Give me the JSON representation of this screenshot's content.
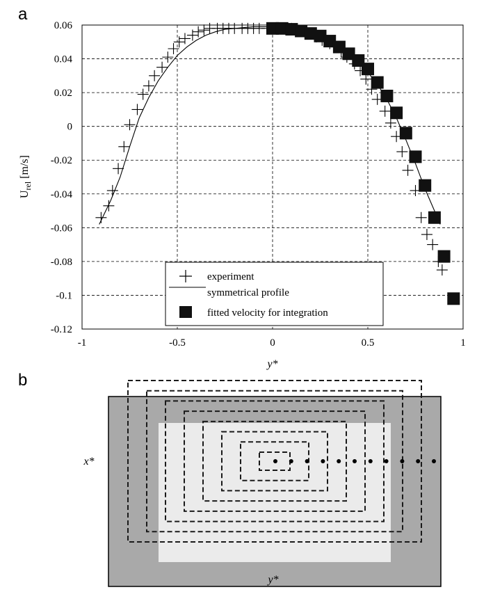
{
  "panels": {
    "a": "a",
    "b": "b"
  },
  "chart_data": [
    {
      "type": "scatter",
      "title": "",
      "xlabel": "y*",
      "ylabel_main": "U",
      "ylabel_sub": "rel",
      "ylabel_unit": " [m/s]",
      "xlim": [
        -1,
        1
      ],
      "ylim": [
        -0.12,
        0.06
      ],
      "xticks": [
        -1,
        -0.5,
        0,
        0.5,
        1
      ],
      "xtick_labels": [
        "-1",
        "-0.5",
        "0",
        "0.5",
        "1"
      ],
      "yticks": [
        0.06,
        0.04,
        0.02,
        0,
        -0.02,
        -0.04,
        -0.06,
        -0.08,
        -0.1,
        -0.12
      ],
      "ytick_labels": [
        "0.06",
        "0.04",
        "0.02",
        "0",
        "-0.02",
        "-0.04",
        "-0.06",
        "-0.08",
        "-0.1",
        "-0.12"
      ],
      "grid": true,
      "legend_position": "bottom-center",
      "series": [
        {
          "name": "experiment",
          "marker": "plus",
          "x": [
            -0.9,
            -0.86,
            -0.84,
            -0.81,
            -0.78,
            -0.75,
            -0.71,
            -0.68,
            -0.65,
            -0.62,
            -0.58,
            -0.55,
            -0.52,
            -0.49,
            -0.46,
            -0.42,
            -0.39,
            -0.36,
            -0.33,
            -0.29,
            -0.26,
            -0.23,
            -0.2,
            -0.16,
            -0.13,
            -0.1,
            -0.07,
            -0.03,
            0.0,
            0.04,
            0.07,
            0.1,
            0.13,
            0.17,
            0.2,
            0.23,
            0.26,
            0.3,
            0.33,
            0.36,
            0.39,
            0.43,
            0.46,
            0.49,
            0.52,
            0.55,
            0.59,
            0.62,
            0.65,
            0.68,
            0.71,
            0.75,
            0.78,
            0.81,
            0.84,
            0.87,
            0.89
          ],
          "y": [
            -0.054,
            -0.047,
            -0.038,
            -0.025,
            -0.012,
            0.001,
            0.01,
            0.019,
            0.024,
            0.03,
            0.035,
            0.041,
            0.046,
            0.05,
            0.052,
            0.054,
            0.056,
            0.057,
            0.058,
            0.058,
            0.058,
            0.058,
            0.058,
            0.058,
            0.058,
            0.058,
            0.058,
            0.058,
            0.058,
            0.058,
            0.058,
            0.058,
            0.057,
            0.056,
            0.055,
            0.053,
            0.051,
            0.049,
            0.047,
            0.044,
            0.041,
            0.037,
            0.033,
            0.028,
            0.022,
            0.016,
            0.009,
            0.002,
            -0.006,
            -0.015,
            -0.026,
            -0.038,
            -0.054,
            -0.064,
            -0.07,
            -0.08,
            -0.085
          ]
        },
        {
          "name": "symmetrical profile",
          "marker": "line",
          "x": [
            -0.91,
            -0.85,
            -0.8,
            -0.75,
            -0.7,
            -0.65,
            -0.6,
            -0.55,
            -0.5,
            -0.45,
            -0.4,
            -0.35,
            -0.3,
            -0.25,
            -0.2,
            -0.15,
            -0.1,
            -0.05,
            0.0,
            0.05,
            0.1,
            0.15,
            0.2,
            0.25,
            0.3,
            0.35,
            0.4,
            0.45,
            0.5,
            0.55,
            0.6,
            0.65,
            0.7,
            0.75,
            0.8,
            0.85,
            0.88
          ],
          "y": [
            -0.058,
            -0.044,
            -0.03,
            -0.012,
            0.005,
            0.017,
            0.027,
            0.035,
            0.042,
            0.047,
            0.051,
            0.054,
            0.056,
            0.0575,
            0.058,
            0.0585,
            0.059,
            0.059,
            0.059,
            0.0585,
            0.058,
            0.0565,
            0.055,
            0.053,
            0.0505,
            0.047,
            0.043,
            0.038,
            0.032,
            0.025,
            0.016,
            0.005,
            -0.008,
            -0.022,
            -0.037,
            -0.05,
            -0.058
          ]
        },
        {
          "name": "fitted velocity for integration",
          "marker": "square",
          "x": [
            0.0,
            0.05,
            0.1,
            0.15,
            0.2,
            0.25,
            0.3,
            0.35,
            0.4,
            0.45,
            0.5,
            0.55,
            0.6,
            0.65,
            0.7,
            0.75,
            0.8,
            0.85,
            0.9,
            0.95
          ],
          "y": [
            0.058,
            0.058,
            0.0575,
            0.0565,
            0.055,
            0.0535,
            0.0505,
            0.047,
            0.043,
            0.039,
            0.034,
            0.026,
            0.018,
            0.008,
            -0.004,
            -0.018,
            -0.035,
            -0.054,
            -0.077,
            -0.102
          ]
        }
      ]
    },
    {
      "type": "diagram",
      "xlabel": "x*",
      "ylabel": "y*",
      "rings": 8,
      "dots": 11,
      "colors": {
        "outer": "#a9a9a9",
        "inner": "#ebebeb",
        "dash": "#1a1a1a"
      }
    }
  ]
}
